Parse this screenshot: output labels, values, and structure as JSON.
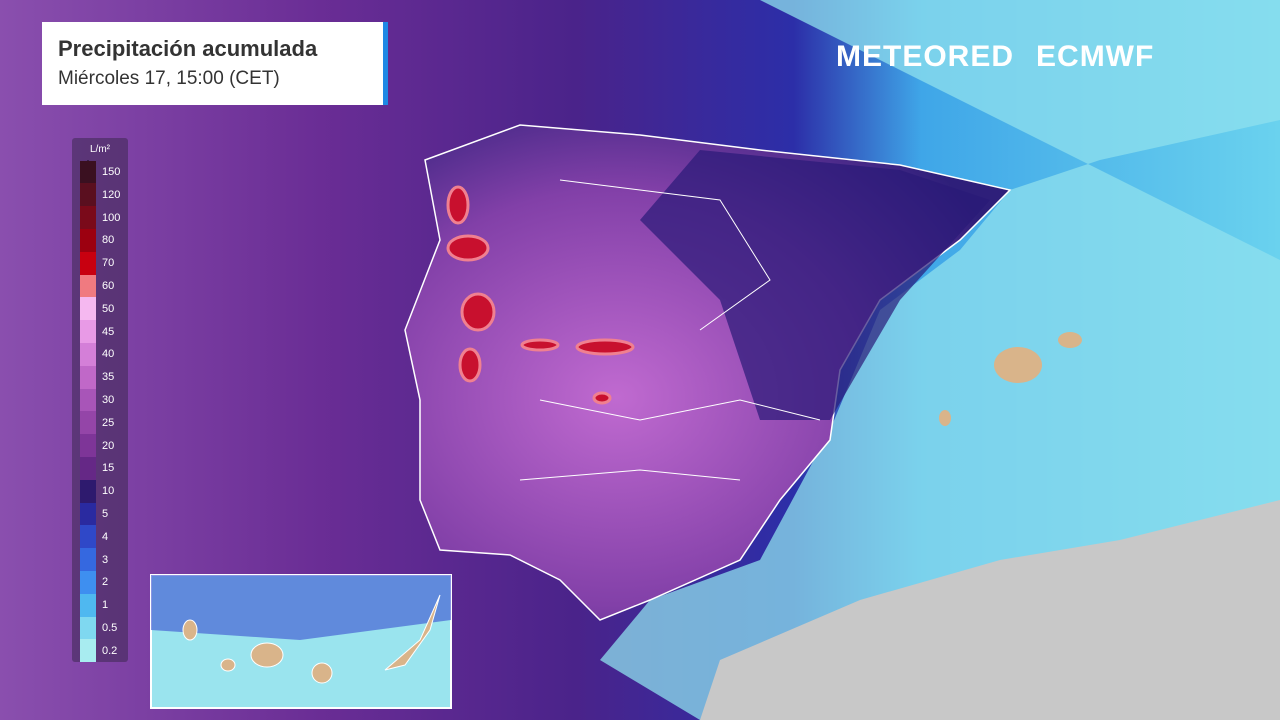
{
  "header": {
    "title": "Precipitación acumulada",
    "subtitle": "Miércoles 17, 15:00 (CET)",
    "brand": "METEORED",
    "partner": "ECMWF"
  },
  "legend": {
    "unit": "L/m²",
    "levels": [
      150,
      120,
      100,
      80,
      70,
      60,
      50,
      45,
      40,
      35,
      30,
      25,
      20,
      15,
      10,
      5,
      4,
      3,
      2,
      1,
      0.5,
      0.2
    ],
    "colors": [
      "#3a1020",
      "#5a0f1f",
      "#7a0a1a",
      "#9c0010",
      "#c80010",
      "#f07a80",
      "#f5b8f0",
      "#e89ae6",
      "#d47fd8",
      "#c068c8",
      "#a855b8",
      "#9445a8",
      "#7e3598",
      "#652886",
      "#2e1a6e",
      "#2a2aa0",
      "#2f48c8",
      "#3568e0",
      "#3e8ff0",
      "#4fb8f0",
      "#7fd8f0",
      "#a8ecf0"
    ]
  }
}
